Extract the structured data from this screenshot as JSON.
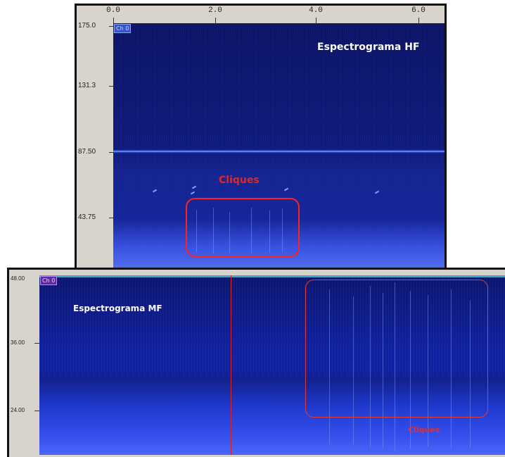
{
  "hf_spectrogram": {
    "title": "Espectrograma HF",
    "channel_badge": "Ch 0",
    "x_axis_labels": [
      "0.0",
      "2.0",
      "4.0",
      "6.0"
    ],
    "y_axis_labels": [
      "175.0",
      "131.3",
      "87.50",
      "43.75"
    ],
    "annotation_label": "Cliques"
  },
  "mf_spectrogram": {
    "title": "Espectrograma MF",
    "channel_badge": "Ch 0",
    "y_axis_labels": [
      "48.00",
      "36.00",
      "24.00"
    ],
    "annotation_label": "Cliques"
  },
  "colors": {
    "spectrogram_dark": "#0b1466",
    "spectrogram_bright": "#5a7dff",
    "annotation_red": "#e02828",
    "axis_background": "#d8d4cc"
  }
}
